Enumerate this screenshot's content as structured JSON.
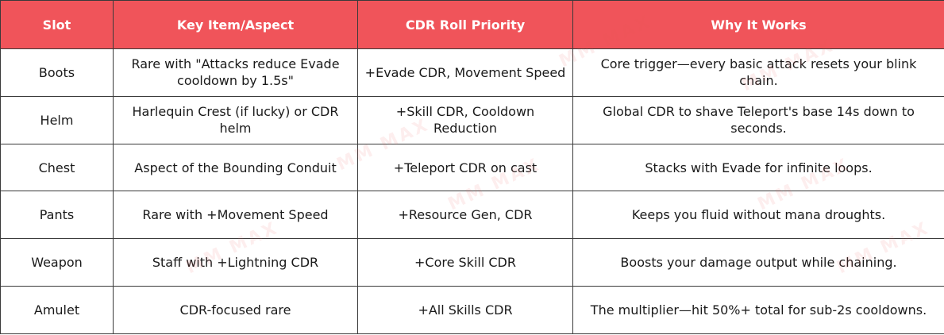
{
  "table": {
    "headers": [
      "Slot",
      "Key Item/Aspect",
      "CDR Roll Priority",
      "Why It Works"
    ],
    "rows": [
      [
        "Boots",
        "Rare with \"Attacks reduce Evade cooldown by 1.5s\"",
        "+Evade CDR, Movement Speed",
        "Core trigger—every basic attack resets your blink chain."
      ],
      [
        "Helm",
        "Harlequin Crest (if lucky) or CDR helm",
        "+Skill CDR, Cooldown Reduction",
        "Global CDR to shave Teleport's base 14s down to seconds."
      ],
      [
        "Chest",
        "Aspect of the Bounding Conduit",
        "+Teleport CDR on cast",
        "Stacks with Evade for infinite loops."
      ],
      [
        "Pants",
        "Rare with +Movement Speed",
        "+Resource Gen, CDR",
        "Keeps you fluid without mana droughts."
      ],
      [
        "Weapon",
        "Staff with +Lightning CDR",
        "+Core Skill CDR",
        "Boosts your damage output while chaining."
      ],
      [
        "Amulet",
        "CDR-focused rare",
        "+All Skills CDR",
        "The multiplier—hit 50%+ total for sub-2s cooldowns."
      ]
    ]
  },
  "watermark": {
    "text": "MM MAX"
  },
  "colors": {
    "header_bg": "#f0545a",
    "header_text": "#ffffff",
    "border": "#3a3a3a"
  }
}
